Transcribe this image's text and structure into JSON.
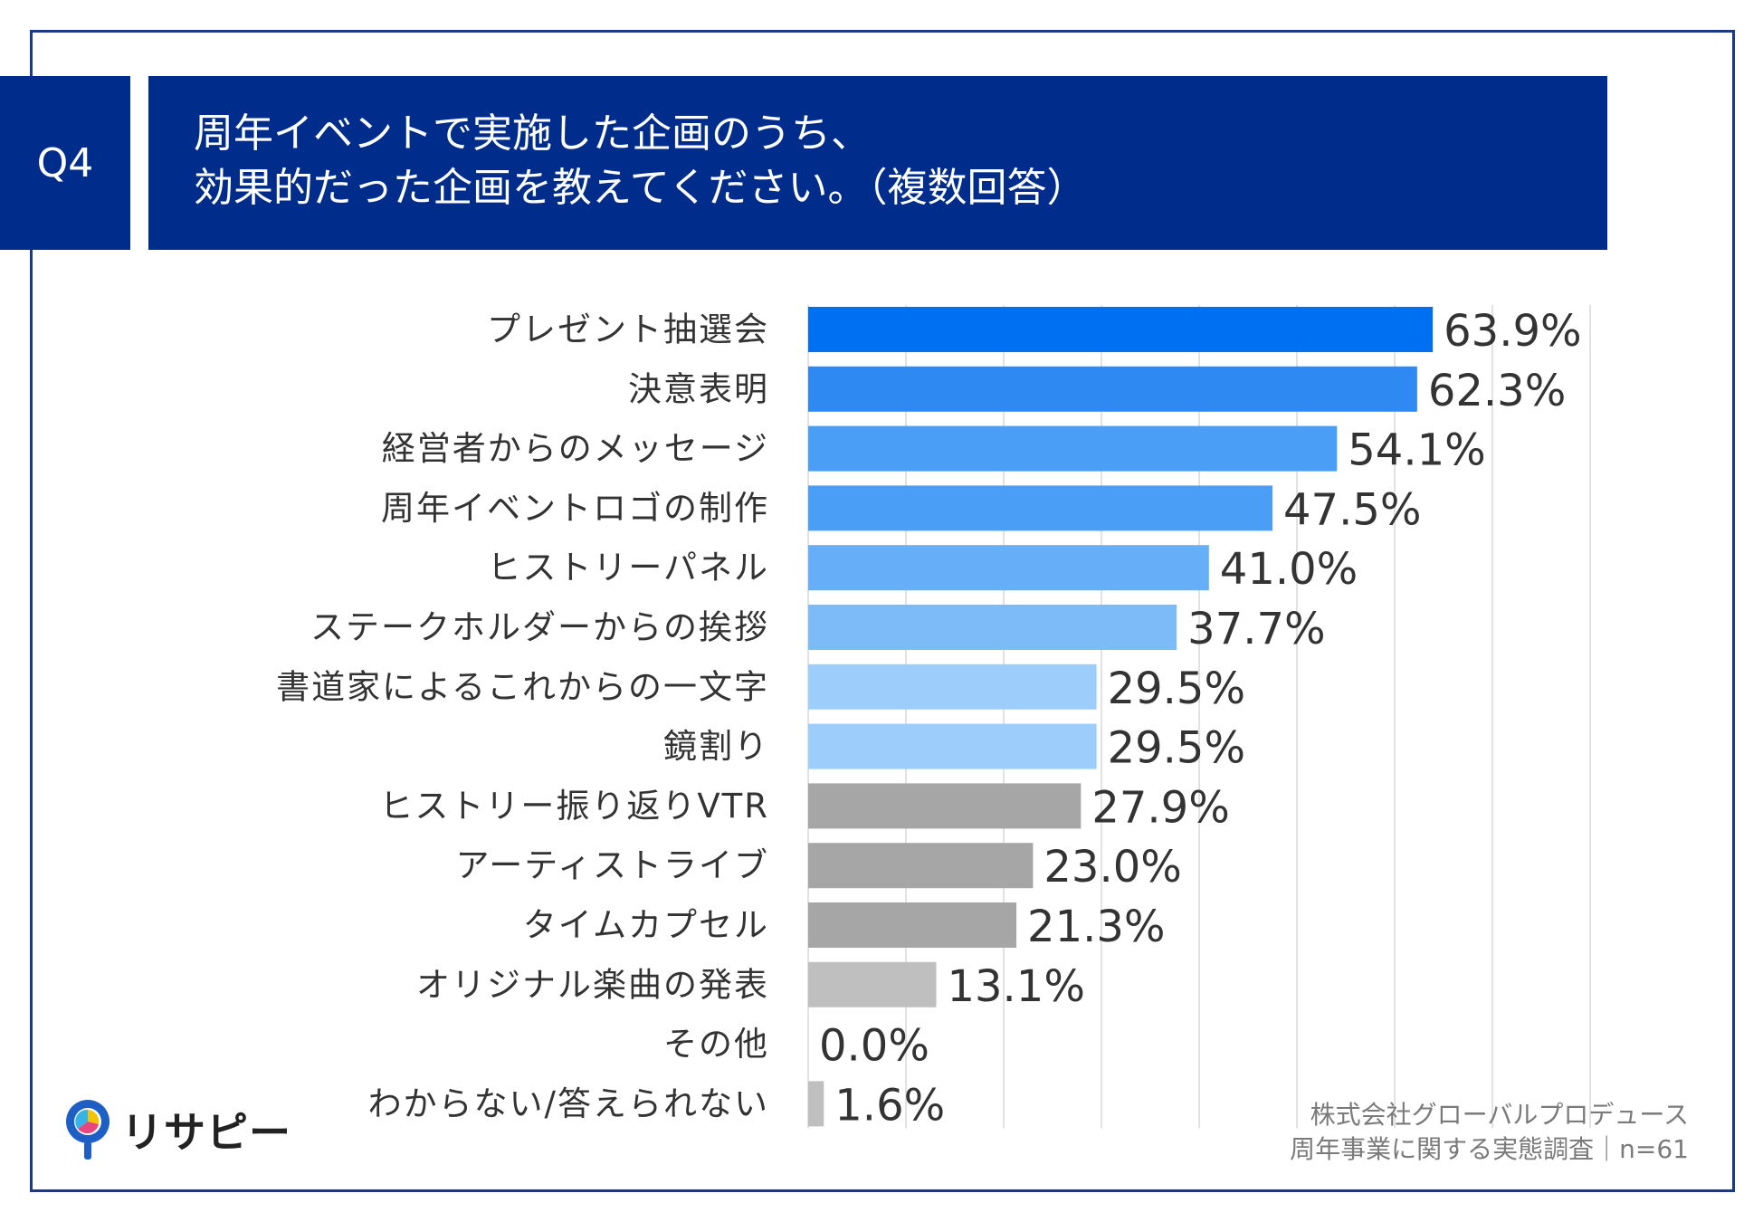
{
  "header": {
    "question_no": "Q4",
    "title_line1": "周年イベントで実施した企画のうち、",
    "title_line2": "効果的だった企画を教えてください。（複数回答）"
  },
  "chart_data": {
    "type": "bar",
    "orientation": "horizontal",
    "categories": [
      "プレゼント抽選会",
      "決意表明",
      "経営者からのメッセージ",
      "周年イベントロゴの制作",
      "ヒストリーパネル",
      "ステークホルダーからの挨拶",
      "書道家によるこれからの一文字",
      "鏡割り",
      "ヒストリー振り返りVTR",
      "アーティストライブ",
      "タイムカプセル",
      "オリジナル楽曲の発表",
      "その他",
      "わからない/答えられない"
    ],
    "values": [
      63.9,
      62.3,
      54.1,
      47.5,
      41.0,
      37.7,
      29.5,
      29.5,
      27.9,
      23.0,
      21.3,
      13.1,
      0.0,
      1.6
    ],
    "value_labels": [
      "63.9%",
      "62.3%",
      "54.1%",
      "47.5%",
      "41.0%",
      "37.7%",
      "29.5%",
      "29.5%",
      "27.9%",
      "23.0%",
      "21.3%",
      "13.1%",
      "0.0%",
      "1.6%"
    ],
    "colors": [
      "#0070f3",
      "#2e8af2",
      "#4a9ef5",
      "#4a9ef5",
      "#66aef7",
      "#7dbbf8",
      "#9dcdfb",
      "#9dcdfb",
      "#a6a6a6",
      "#a6a6a6",
      "#a6a6a6",
      "#bfbfbf",
      "#bfbfbf",
      "#bfbfbf"
    ],
    "xlim": [
      0,
      80
    ],
    "grid": true,
    "title": "",
    "xlabel": "",
    "ylabel": ""
  },
  "footer": {
    "credit_line1": "株式会社グローバルプロデュース",
    "credit_line2": "周年事業に関する実態調査｜n=61",
    "logo_text": "リサピー"
  }
}
